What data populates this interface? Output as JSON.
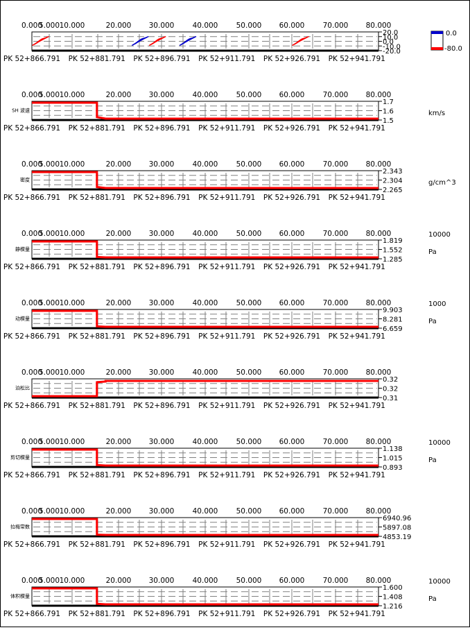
{
  "x_ticks": [
    "0.000",
    "5.000",
    "10.000",
    "20.000",
    "30.000",
    "40.000",
    "50.000",
    "60.000",
    "70.000",
    "80.000"
  ],
  "x_tick_values": [
    0,
    5,
    10,
    20,
    30,
    40,
    50,
    60,
    70,
    80
  ],
  "x_range": [
    0,
    80
  ],
  "pk_labels": [
    "PK 52+866.791",
    "PK 52+881.791",
    "PK 52+896.791",
    "PK 52+911.791",
    "PK 52+926.791",
    "PK 52+941.791"
  ],
  "pk_values": [
    0,
    15,
    30,
    45,
    60,
    75
  ],
  "legend": {
    "top_value": "0.0",
    "bottom_value": "-80.0",
    "top_color": "#0000cc",
    "bottom_color": "#ff0000"
  },
  "colors": {
    "line": "#ff0000",
    "grid": "#808080",
    "axis": "#000000",
    "blue": "#0000cc"
  },
  "chart_data": [
    {
      "type": "heatmap",
      "title": "",
      "y_ticks": [
        "20.0",
        "10.0",
        "0.0",
        "-10.0",
        "-20.0"
      ],
      "y_range": [
        -20,
        20
      ],
      "units": [],
      "features": [
        {
          "x": 2,
          "color": "red"
        },
        {
          "x": 25,
          "color": "blue"
        },
        {
          "x": 29,
          "color": "red"
        },
        {
          "x": 36,
          "color": "blue"
        },
        {
          "x": 62,
          "color": "red"
        }
      ]
    },
    {
      "type": "line",
      "title": "SH 波速",
      "y_ticks": [
        "1.7",
        "1.6",
        "1.5"
      ],
      "y_range": [
        1.5,
        1.7
      ],
      "units": [
        "km/s"
      ],
      "x": [
        0,
        15,
        15,
        17,
        80
      ],
      "y": [
        1.7,
        1.7,
        1.52,
        1.5,
        1.5
      ]
    },
    {
      "type": "line",
      "title": "密度",
      "y_ticks": [
        "2.343",
        "2.304",
        "2.265"
      ],
      "y_range": [
        2.265,
        2.343
      ],
      "units": [
        "g/cm^3"
      ],
      "x": [
        0,
        15,
        15,
        17,
        80
      ],
      "y": [
        2.343,
        2.343,
        2.27,
        2.265,
        2.265
      ]
    },
    {
      "type": "line",
      "title": "静模量",
      "y_ticks": [
        "1.819",
        "1.552",
        "1.285"
      ],
      "y_range": [
        1.285,
        1.819
      ],
      "units": [
        "10000",
        "Pa"
      ],
      "x": [
        0,
        15,
        15,
        17,
        80
      ],
      "y": [
        1.819,
        1.819,
        1.3,
        1.285,
        1.285
      ]
    },
    {
      "type": "line",
      "title": "动模量",
      "y_ticks": [
        "9.903",
        "8.281",
        "6.659"
      ],
      "y_range": [
        6.659,
        9.903
      ],
      "units": [
        "1000",
        "Pa"
      ],
      "x": [
        0,
        15,
        15,
        17,
        80
      ],
      "y": [
        9.903,
        9.903,
        6.75,
        6.659,
        6.659
      ]
    },
    {
      "type": "line",
      "title": "泊松比",
      "y_ticks": [
        "0.32",
        "0.32",
        "0.31"
      ],
      "y_range": [
        0.31,
        0.322
      ],
      "units": [],
      "x": [
        0,
        15,
        15,
        17,
        17,
        80
      ],
      "y": [
        0.31,
        0.31,
        0.3205,
        0.321,
        0.3215,
        0.3215
      ]
    },
    {
      "type": "line",
      "title": "剪切模量",
      "y_ticks": [
        "1.138",
        "1.015",
        "0.893"
      ],
      "y_range": [
        0.893,
        1.138
      ],
      "units": [
        "10000",
        "Pa"
      ],
      "x": [
        0,
        15,
        15,
        17,
        80
      ],
      "y": [
        1.138,
        1.138,
        0.9,
        0.893,
        0.893
      ]
    },
    {
      "type": "line",
      "title": "拉梅常数",
      "y_ticks": [
        "6940.96",
        "5897.08",
        "4853.19"
      ],
      "y_range": [
        4853.19,
        6940.96
      ],
      "units": [],
      "x": [
        0,
        15,
        15,
        17,
        80
      ],
      "y": [
        6940.96,
        6940.96,
        4890,
        4853.19,
        4853.19
      ]
    },
    {
      "type": "line",
      "title": "体积模量",
      "y_ticks": [
        "1.600",
        "1.408",
        "1.216"
      ],
      "y_range": [
        1.216,
        1.6
      ],
      "units": [
        "10000",
        "Pa"
      ],
      "x": [
        0,
        15,
        15,
        17,
        80
      ],
      "y": [
        1.6,
        1.6,
        1.23,
        1.216,
        1.216
      ]
    }
  ]
}
